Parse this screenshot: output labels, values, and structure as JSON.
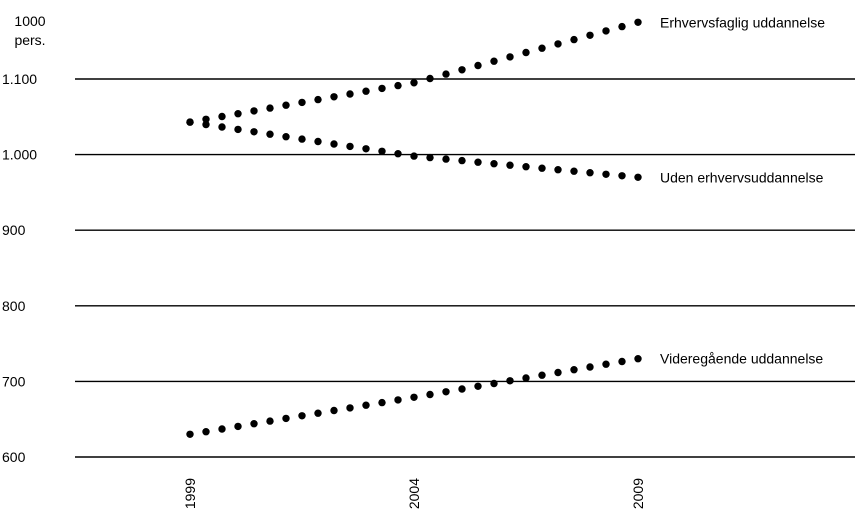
{
  "chart_data": {
    "type": "scatter",
    "title": "",
    "xlabel": "",
    "ylabel_lines": [
      "1000",
      "pers."
    ],
    "ylim": [
      600,
      1130
    ],
    "xlim": [
      1999,
      2009
    ],
    "y_ticks": [
      {
        "value": 600,
        "label": "600"
      },
      {
        "value": 700,
        "label": "700"
      },
      {
        "value": 800,
        "label": "800"
      },
      {
        "value": 900,
        "label": "900"
      },
      {
        "value": 1000,
        "label": "1.000"
      },
      {
        "value": 1100,
        "label": "1.100"
      }
    ],
    "x_ticks": [
      {
        "value": 1999,
        "label": "1999"
      },
      {
        "value": 2004,
        "label": "2004"
      },
      {
        "value": 2009,
        "label": "2009"
      }
    ],
    "grid": "horizontal",
    "marker_color": "#000000",
    "series": [
      {
        "name": "Erhvervsfaglig uddannelse",
        "start": {
          "x": 1999,
          "y": 1043
        },
        "mid": {
          "x": 2004,
          "y": 1095
        },
        "end": {
          "x": 2009,
          "y": 1175
        }
      },
      {
        "name": "Uden erhvervsuddannelse",
        "start": {
          "x": 1999,
          "y": 1043
        },
        "mid": {
          "x": 2004,
          "y": 998
        },
        "end": {
          "x": 2009,
          "y": 970
        }
      },
      {
        "name": "Videregående uddannelse",
        "start": {
          "x": 1999,
          "y": 630
        },
        "mid": {
          "x": 2004,
          "y": 679
        },
        "end": {
          "x": 2009,
          "y": 730
        }
      }
    ]
  }
}
